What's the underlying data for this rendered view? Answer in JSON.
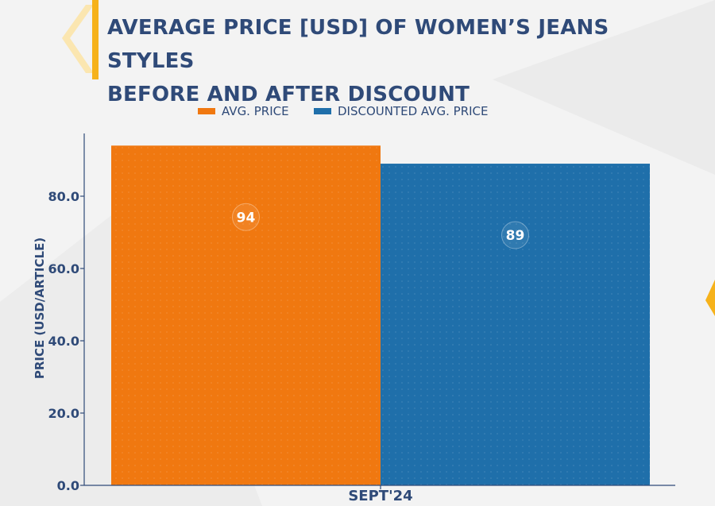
{
  "title_line1": "AVERAGE PRICE [USD] OF WOMEN’S JEANS STYLES",
  "title_line2": "BEFORE AND AFTER DISCOUNT",
  "legend": [
    {
      "label": "AVG. PRICE",
      "color": "#f07810"
    },
    {
      "label": "DISCOUNTED AVG. PRICE",
      "color": "#1f6faa"
    }
  ],
  "chart_data": {
    "type": "bar",
    "categories": [
      "SEPT'24"
    ],
    "series": [
      {
        "name": "AVG. PRICE",
        "values": [
          94
        ],
        "color": "#f07810"
      },
      {
        "name": "DISCOUNTED AVG. PRICE",
        "values": [
          89
        ],
        "color": "#1f6faa"
      }
    ],
    "data_labels": [
      "94",
      "89"
    ],
    "xlabel": "",
    "ylabel": "PRICE (USD/ARTICLE)",
    "ylim": [
      0,
      97.5
    ],
    "yticks": [
      0,
      20,
      40,
      60,
      80
    ],
    "ytick_labels": [
      "0.0",
      "20.0",
      "40.0",
      "60.0",
      "80.0"
    ],
    "legend_position": "top-center",
    "grid": false
  }
}
